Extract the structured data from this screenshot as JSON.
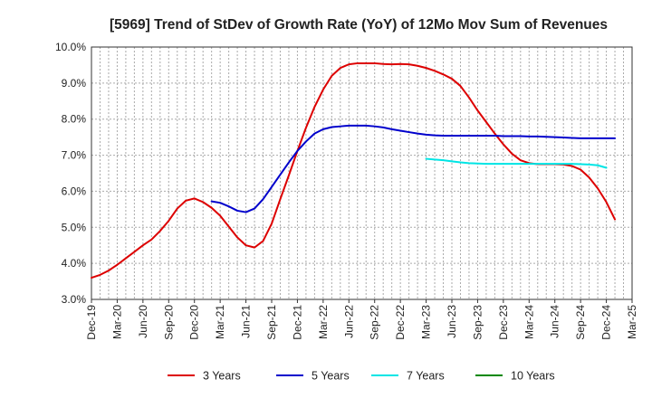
{
  "chart_data": {
    "type": "line",
    "title": "[5969]  Trend of StDev of Growth Rate (YoY) of 12Mo Mov Sum of Revenues",
    "xlabel": "",
    "ylabel": "",
    "ylim": [
      3.0,
      10.0
    ],
    "y_ticks": [
      3.0,
      4.0,
      5.0,
      6.0,
      7.0,
      8.0,
      9.0,
      10.0
    ],
    "y_tick_labels": [
      "3.0%",
      "4.0%",
      "5.0%",
      "6.0%",
      "7.0%",
      "8.0%",
      "9.0%",
      "10.0%"
    ],
    "x_tick_labels": [
      "Dec-19",
      "Mar-20",
      "Jun-20",
      "Sep-20",
      "Dec-20",
      "Mar-21",
      "Jun-21",
      "Sep-21",
      "Dec-21",
      "Mar-22",
      "Jun-22",
      "Sep-22",
      "Dec-22",
      "Mar-23",
      "Jun-23",
      "Sep-23",
      "Dec-23",
      "Mar-24",
      "Jun-24",
      "Sep-24",
      "Dec-24",
      "Mar-25"
    ],
    "grid": true,
    "legend_position": "bottom",
    "series": [
      {
        "name": "3 Years",
        "color": "#dd0000",
        "start_index": 0,
        "values": [
          3.6,
          3.68,
          3.8,
          3.96,
          4.14,
          4.32,
          4.5,
          4.66,
          4.9,
          5.18,
          5.52,
          5.74,
          5.8,
          5.7,
          5.54,
          5.32,
          5.02,
          4.72,
          4.5,
          4.44,
          4.62,
          5.1,
          5.78,
          6.44,
          7.12,
          7.76,
          8.34,
          8.82,
          9.2,
          9.42,
          9.52,
          9.55,
          9.55,
          9.55,
          9.53,
          9.52,
          9.53,
          9.52,
          9.48,
          9.42,
          9.34,
          9.24,
          9.12,
          8.92,
          8.6,
          8.24,
          7.92,
          7.6,
          7.3,
          7.04,
          6.86,
          6.78,
          6.75,
          6.75,
          6.75,
          6.74,
          6.7,
          6.6,
          6.38,
          6.08,
          5.7,
          5.22
        ]
      },
      {
        "name": "5 Years",
        "color": "#0000cc",
        "start_index": 14,
        "values": [
          5.72,
          5.68,
          5.58,
          5.46,
          5.42,
          5.52,
          5.78,
          6.12,
          6.46,
          6.8,
          7.12,
          7.38,
          7.6,
          7.72,
          7.78,
          7.8,
          7.82,
          7.82,
          7.82,
          7.8,
          7.77,
          7.72,
          7.68,
          7.64,
          7.6,
          7.57,
          7.55,
          7.54,
          7.54,
          7.54,
          7.54,
          7.54,
          7.54,
          7.54,
          7.53,
          7.53,
          7.53,
          7.52,
          7.52,
          7.51,
          7.5,
          7.49,
          7.48,
          7.47,
          7.47,
          7.47,
          7.47,
          7.47
        ]
      },
      {
        "name": "7 Years",
        "color": "#00e5e5",
        "start_index": 39,
        "values": [
          6.9,
          6.88,
          6.86,
          6.83,
          6.8,
          6.78,
          6.77,
          6.76,
          6.76,
          6.76,
          6.76,
          6.76,
          6.76,
          6.76,
          6.76,
          6.76,
          6.76,
          6.76,
          6.75,
          6.74,
          6.72,
          6.65
        ]
      },
      {
        "name": "10 Years",
        "color": "#008800",
        "start_index": 0,
        "values": []
      }
    ]
  }
}
